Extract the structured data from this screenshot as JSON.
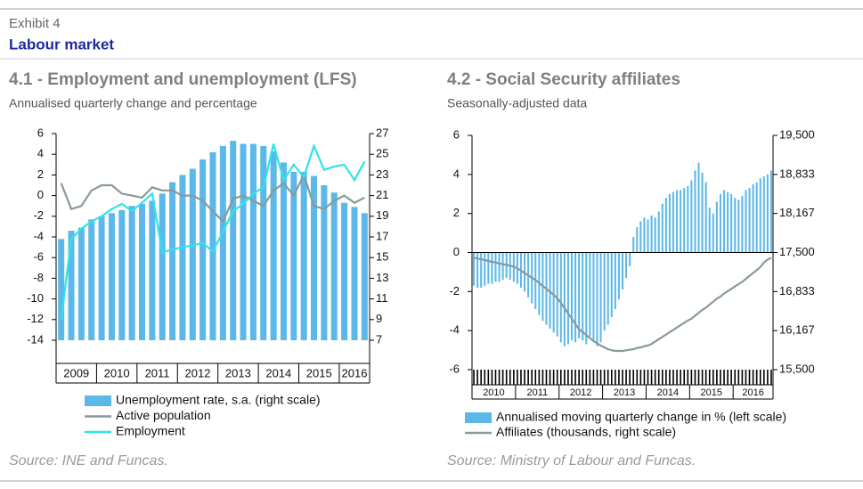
{
  "exhibit": "Exhibit 4",
  "section_title": "Labour market",
  "chart_data": [
    {
      "type": "combo",
      "title": "4.1 - Employment and unemployment (LFS)",
      "subtitle": "Annualised quarterly change and percentage",
      "source": "Source: INE and Funcas.",
      "categories": [
        "2009",
        null,
        null,
        null,
        "2010",
        null,
        null,
        null,
        "2011",
        null,
        null,
        null,
        "2012",
        null,
        null,
        null,
        "2013",
        null,
        null,
        null,
        "2014",
        null,
        null,
        null,
        "2015",
        null,
        null,
        null,
        "2016",
        null,
        null
      ],
      "ylim": [
        -14,
        6
      ],
      "yticks": [
        -14,
        -12,
        -10,
        -8,
        -6,
        -4,
        -2,
        0,
        2,
        4,
        6
      ],
      "y2lim": [
        7,
        27
      ],
      "y2ticks": [
        7,
        9,
        11,
        13,
        15,
        17,
        19,
        21,
        23,
        25,
        27
      ],
      "series": [
        {
          "name": "Unemployment rate, s.a. (right scale)",
          "type": "bar",
          "axis": "y2",
          "color": "#5cb8e8",
          "values": [
            16.8,
            17.6,
            17.9,
            18.7,
            19.0,
            19.3,
            19.6,
            20.0,
            20.2,
            20.5,
            21.2,
            22.3,
            23.0,
            23.6,
            24.5,
            25.2,
            25.8,
            26.3,
            26.0,
            26.0,
            25.8,
            25.3,
            24.2,
            23.3,
            23.3,
            22.9,
            22.0,
            21.3,
            20.3,
            19.9,
            19.3
          ]
        },
        {
          "name": "Active population",
          "type": "line",
          "color": "#8a9999",
          "values": [
            1.2,
            -1.3,
            -1.0,
            0.5,
            1.0,
            1.0,
            0.2,
            0.0,
            -0.2,
            0.8,
            0.5,
            0.5,
            0,
            0,
            -0.5,
            -1.5,
            -2.5,
            -0.3,
            0.0,
            -0.5,
            -1.0,
            0.5,
            1.2,
            0,
            2.0,
            -1.0,
            -1.3,
            -0.5,
            0,
            -0.7,
            -0.2
          ]
        },
        {
          "name": "Employment",
          "type": "line",
          "color": "#2fe3e8",
          "values": [
            -12,
            -4.2,
            -3.2,
            -2.5,
            -2.0,
            -1.3,
            -0.8,
            -1.5,
            -0.7,
            0.2,
            -5.5,
            -5.2,
            -5.0,
            -4.8,
            -4.6,
            -5.4,
            -3.5,
            -1.5,
            -0.8,
            0.2,
            0.8,
            5.0,
            1.5,
            3.0,
            1.8,
            4.8,
            2.5,
            2.8,
            3.0,
            1.5,
            3.3
          ]
        }
      ]
    },
    {
      "type": "combo",
      "title": "4.2 - Social Security affiliates",
      "subtitle": "Seasonally-adjusted data",
      "source": "Source: Ministry of Labour and Funcas.",
      "categories": [
        "2010",
        null,
        null,
        null,
        null,
        null,
        null,
        null,
        null,
        null,
        null,
        null,
        "2011",
        null,
        null,
        null,
        null,
        null,
        null,
        null,
        null,
        null,
        null,
        null,
        "2012",
        null,
        null,
        null,
        null,
        null,
        null,
        null,
        null,
        null,
        null,
        null,
        "2013",
        null,
        null,
        null,
        null,
        null,
        null,
        null,
        null,
        null,
        null,
        null,
        "2014",
        null,
        null,
        null,
        null,
        null,
        null,
        null,
        null,
        null,
        null,
        null,
        "2015",
        null,
        null,
        null,
        null,
        null,
        null,
        null,
        null,
        null,
        null,
        null,
        "2016",
        null,
        null,
        null,
        null,
        null,
        null,
        null,
        null,
        null,
        null
      ],
      "ylim": [
        -6,
        6
      ],
      "yticks": [
        -6,
        -4,
        -2,
        0,
        2,
        4,
        6
      ],
      "y2lim": [
        15500,
        19500
      ],
      "y2ticks": [
        {
          "value": 15500,
          "label": "15,500"
        },
        {
          "value": 16167,
          "label": "16,167"
        },
        {
          "value": 16833,
          "label": "16,833"
        },
        {
          "value": 17500,
          "label": "17,500"
        },
        {
          "value": 18167,
          "label": "18,167"
        },
        {
          "value": 18833,
          "label": "18,833"
        },
        {
          "value": 19500,
          "label": "19,500"
        }
      ],
      "series": [
        {
          "name": "Annualised moving quarterly change in % (left scale)",
          "type": "bar",
          "color": "#5cb8e8",
          "values": [
            -1.7,
            -1.8,
            -1.8,
            -1.7,
            -1.6,
            -1.6,
            -1.5,
            -1.5,
            -1.4,
            -1.3,
            -1.4,
            -1.5,
            -1.6,
            -1.8,
            -2.0,
            -2.3,
            -2.6,
            -2.9,
            -3.2,
            -3.5,
            -3.7,
            -3.9,
            -4.1,
            -4.3,
            -4.6,
            -4.8,
            -4.7,
            -4.5,
            -4.6,
            -4.4,
            -4.5,
            -4.7,
            -4.3,
            -4.5,
            -4.8,
            -4.6,
            -4.0,
            -3.7,
            -3.3,
            -2.9,
            -2.4,
            -1.9,
            -1.3,
            -0.7,
            0.8,
            1.3,
            1.6,
            1.8,
            1.7,
            1.9,
            1.8,
            2.1,
            2.5,
            2.8,
            3.0,
            3.1,
            3.2,
            3.2,
            3.3,
            3.4,
            3.7,
            4.2,
            4.6,
            4.1,
            3.6,
            2.3,
            2.0,
            2.6,
            3.0,
            3.2,
            3.1,
            3.0,
            2.8,
            2.7,
            2.9,
            3.2,
            3.3,
            3.5,
            3.6,
            3.8,
            3.9,
            4.0,
            4.2
          ]
        },
        {
          "name": "Affiliates (thousands, right scale)",
          "type": "line",
          "axis": "y2",
          "color": "#8a9999",
          "values": [
            17410,
            17400,
            17385,
            17370,
            17355,
            17340,
            17330,
            17315,
            17300,
            17290,
            17275,
            17260,
            17230,
            17190,
            17150,
            17110,
            17070,
            17030,
            16980,
            16930,
            16880,
            16830,
            16780,
            16720,
            16640,
            16550,
            16460,
            16370,
            16280,
            16190,
            16140,
            16090,
            16040,
            15990,
            15950,
            15910,
            15880,
            15850,
            15830,
            15820,
            15820,
            15820,
            15830,
            15840,
            15850,
            15870,
            15880,
            15900,
            15910,
            15940,
            15980,
            16020,
            16060,
            16100,
            16140,
            16180,
            16220,
            16260,
            16300,
            16340,
            16370,
            16420,
            16470,
            16520,
            16560,
            16610,
            16660,
            16710,
            16750,
            16800,
            16840,
            16880,
            16920,
            16960,
            17000,
            17050,
            17100,
            17150,
            17200,
            17250,
            17330,
            17380,
            17410
          ]
        }
      ]
    }
  ]
}
